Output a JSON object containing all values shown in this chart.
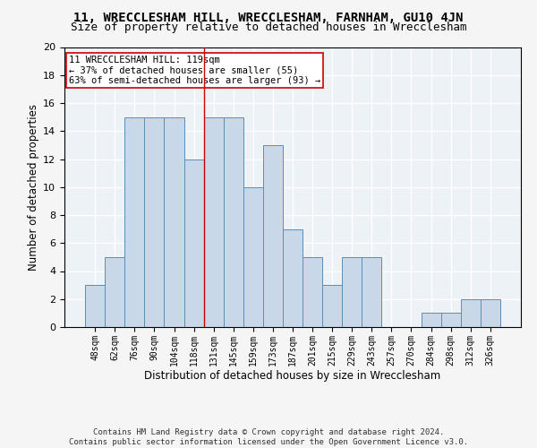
{
  "title": "11, WRECCLESHAM HILL, WRECCLESHAM, FARNHAM, GU10 4JN",
  "subtitle": "Size of property relative to detached houses in Wrecclesham",
  "xlabel": "Distribution of detached houses by size in Wrecclesham",
  "ylabel": "Number of detached properties",
  "categories": [
    "48sqm",
    "62sqm",
    "76sqm",
    "90sqm",
    "104sqm",
    "118sqm",
    "131sqm",
    "145sqm",
    "159sqm",
    "173sqm",
    "187sqm",
    "201sqm",
    "215sqm",
    "229sqm",
    "243sqm",
    "257sqm",
    "270sqm",
    "284sqm",
    "298sqm",
    "312sqm",
    "326sqm"
  ],
  "values": [
    3,
    5,
    15,
    15,
    15,
    12,
    15,
    15,
    10,
    13,
    7,
    5,
    3,
    5,
    5,
    0,
    0,
    1,
    1,
    2,
    2
  ],
  "bar_color": "#c8d8e8",
  "bar_edge_color": "#5b8db8",
  "vline_x": 5.5,
  "vline_color": "#cc0000",
  "annotation_text": "11 WRECCLESHAM HILL: 119sqm\n← 37% of detached houses are smaller (55)\n63% of semi-detached houses are larger (93) →",
  "annotation_box_color": "#ffffff",
  "annotation_box_edge_color": "#cc0000",
  "footer": "Contains HM Land Registry data © Crown copyright and database right 2024.\nContains public sector information licensed under the Open Government Licence v3.0.",
  "ylim": [
    0,
    20
  ],
  "background_color": "#edf2f7",
  "grid_color": "#ffffff",
  "title_fontsize": 10,
  "subtitle_fontsize": 9,
  "xlabel_fontsize": 8.5,
  "ylabel_fontsize": 8.5,
  "tick_fontsize": 7,
  "annotation_fontsize": 7.5,
  "footer_fontsize": 6.5
}
